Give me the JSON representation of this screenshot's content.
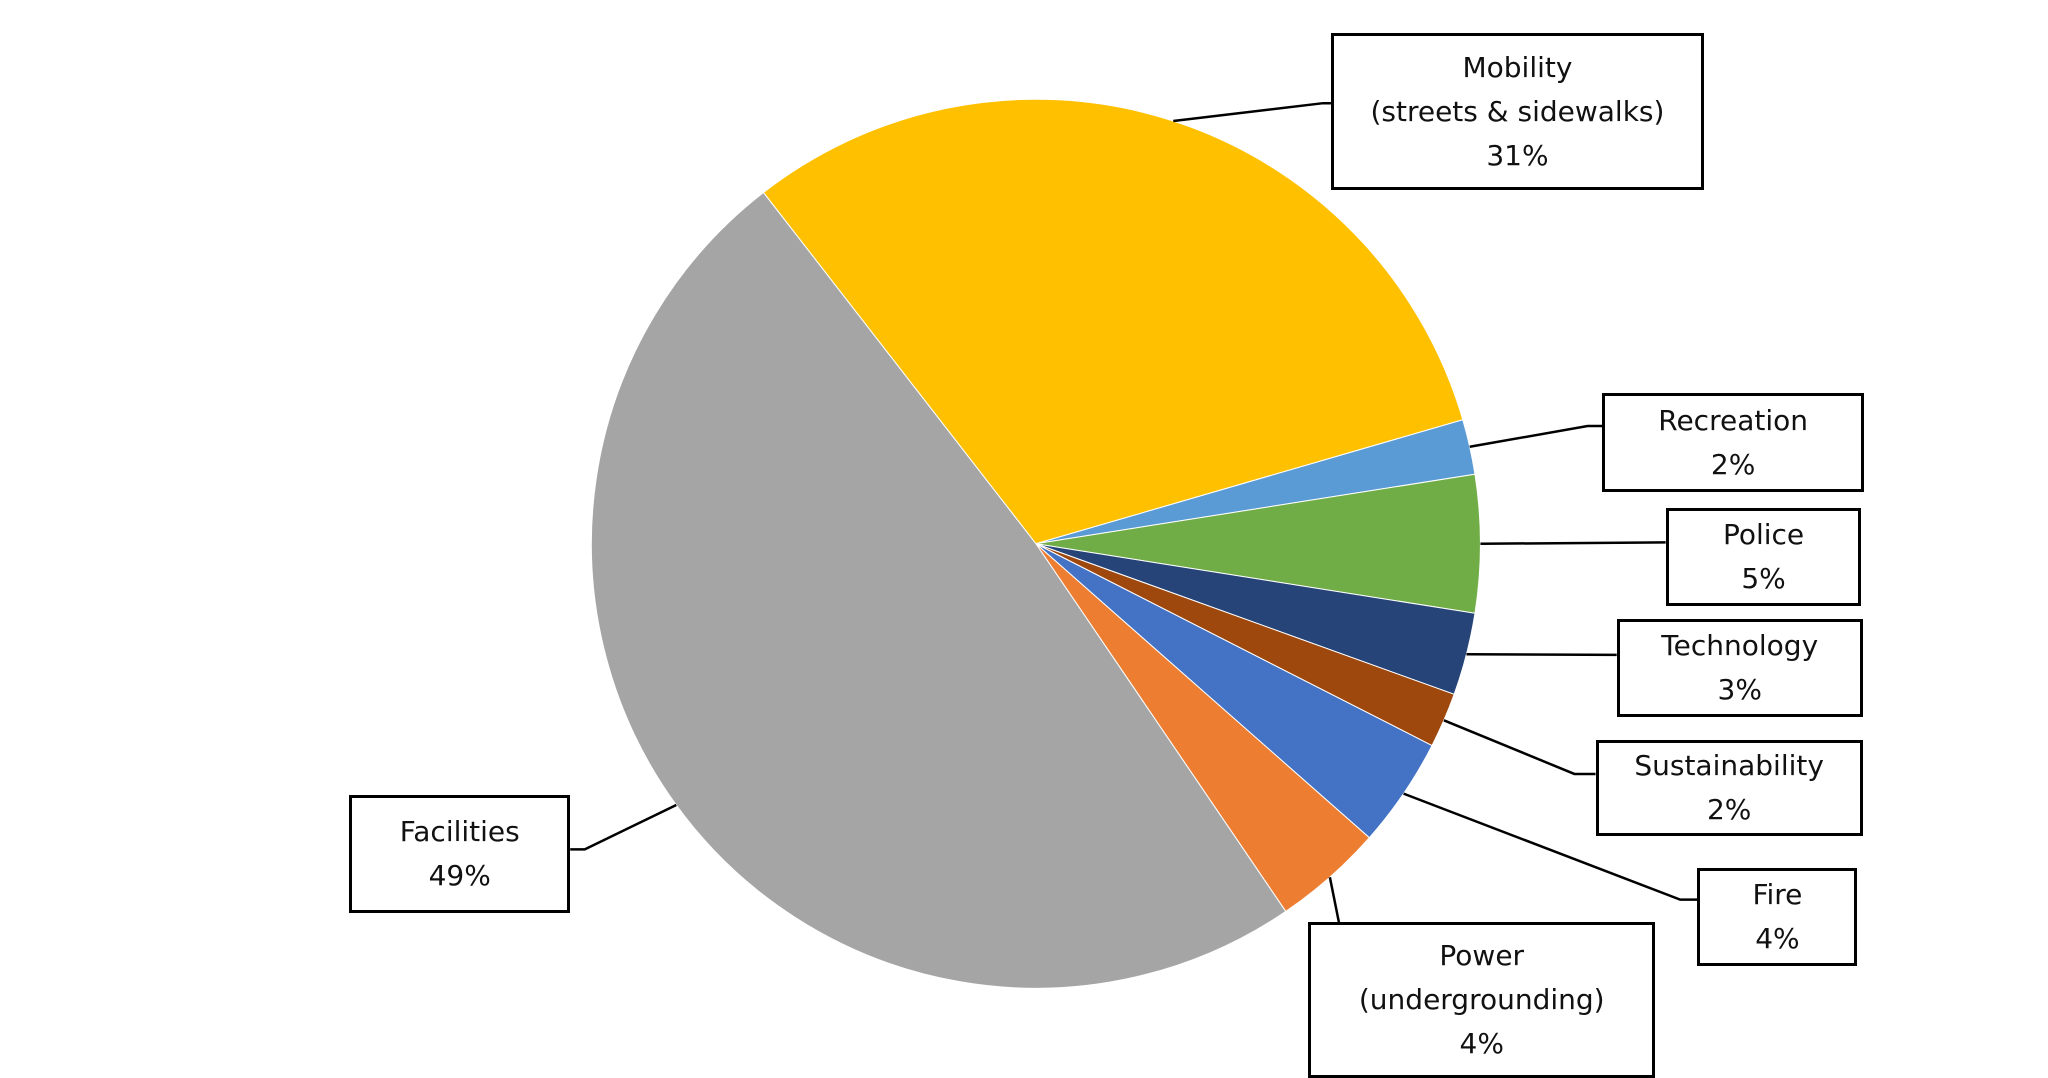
{
  "chart_data": {
    "type": "pie",
    "categories": [
      "Mobility\n(streets & sidewalks)",
      "Recreation",
      "Police",
      "Technology",
      "Sustainability",
      "Fire",
      "Power\n(undergrounding)",
      "Facilities"
    ],
    "values": [
      31,
      2,
      5,
      3,
      2,
      4,
      4,
      49
    ],
    "value_labels": [
      "31%",
      "2%",
      "5%",
      "3%",
      "2%",
      "4%",
      "4%",
      "49%"
    ],
    "colors": [
      "#ffc000",
      "#5b9bd5",
      "#70ad47",
      "#264478",
      "#9e480e",
      "#4472c4",
      "#ed7d31",
      "#a5a5a5"
    ]
  }
}
